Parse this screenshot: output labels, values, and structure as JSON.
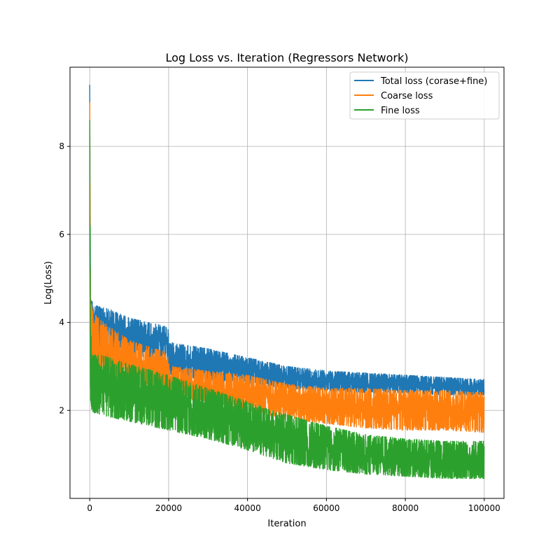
{
  "chart_data": {
    "type": "line",
    "title": "Log Loss vs. Iteration (Regressors Network)",
    "xlabel": "Iteration",
    "ylabel": "Log(Loss)",
    "xlim": [
      -5000,
      105000
    ],
    "ylim": [
      0.0,
      9.8
    ],
    "xticks": [
      0,
      20000,
      40000,
      60000,
      80000,
      100000
    ],
    "xtick_labels": [
      "0",
      "20000",
      "40000",
      "60000",
      "80000",
      "100000"
    ],
    "yticks": [
      2,
      4,
      6,
      8
    ],
    "ytick_labels": [
      "2",
      "4",
      "6",
      "8"
    ],
    "grid": true,
    "legend_position": "top-right",
    "x_range": [
      0,
      100000
    ],
    "series": [
      {
        "name": "Total loss (corase+fine)",
        "color": "#1f77b4",
        "spike_max": 9.4,
        "trend_x": [
          0,
          200,
          500,
          1000,
          5000,
          10000,
          19800,
          20200,
          30000,
          40000,
          50000,
          60000,
          70000,
          80000,
          90000,
          100000
        ],
        "trend_low": [
          7.5,
          3.4,
          3.3,
          3.4,
          3.4,
          3.3,
          3.1,
          2.8,
          2.7,
          2.6,
          2.5,
          2.45,
          2.4,
          2.4,
          2.35,
          2.35
        ],
        "trend_high": [
          9.4,
          4.6,
          4.5,
          4.4,
          4.3,
          4.1,
          3.9,
          3.55,
          3.4,
          3.2,
          3.0,
          2.9,
          2.85,
          2.8,
          2.75,
          2.7
        ]
      },
      {
        "name": "Coarse loss",
        "color": "#ff7f0e",
        "spike_max": 9.0,
        "trend_x": [
          0,
          200,
          500,
          1000,
          5000,
          10000,
          19800,
          20200,
          30000,
          40000,
          50000,
          60000,
          70000,
          80000,
          90000,
          100000
        ],
        "trend_low": [
          6.5,
          3.0,
          2.9,
          2.8,
          2.7,
          2.6,
          2.45,
          2.3,
          2.2,
          2.0,
          1.8,
          1.7,
          1.6,
          1.55,
          1.55,
          1.5
        ],
        "trend_high": [
          9.0,
          4.6,
          4.4,
          4.2,
          3.9,
          3.6,
          3.3,
          3.0,
          2.9,
          2.8,
          2.6,
          2.5,
          2.5,
          2.45,
          2.45,
          2.4
        ]
      },
      {
        "name": "Fine loss",
        "color": "#2ca02c",
        "spike_max": 8.6,
        "trend_x": [
          0,
          200,
          500,
          1000,
          5000,
          10000,
          20000,
          30000,
          40000,
          50000,
          60000,
          70000,
          80000,
          90000,
          100000
        ],
        "trend_low": [
          6.0,
          2.1,
          2.0,
          1.95,
          1.85,
          1.75,
          1.55,
          1.35,
          1.1,
          0.8,
          0.65,
          0.55,
          0.5,
          0.45,
          0.45
        ],
        "trend_high": [
          8.6,
          4.0,
          3.4,
          3.3,
          3.2,
          3.05,
          2.8,
          2.5,
          2.2,
          1.9,
          1.65,
          1.45,
          1.35,
          1.3,
          1.3
        ]
      }
    ]
  }
}
